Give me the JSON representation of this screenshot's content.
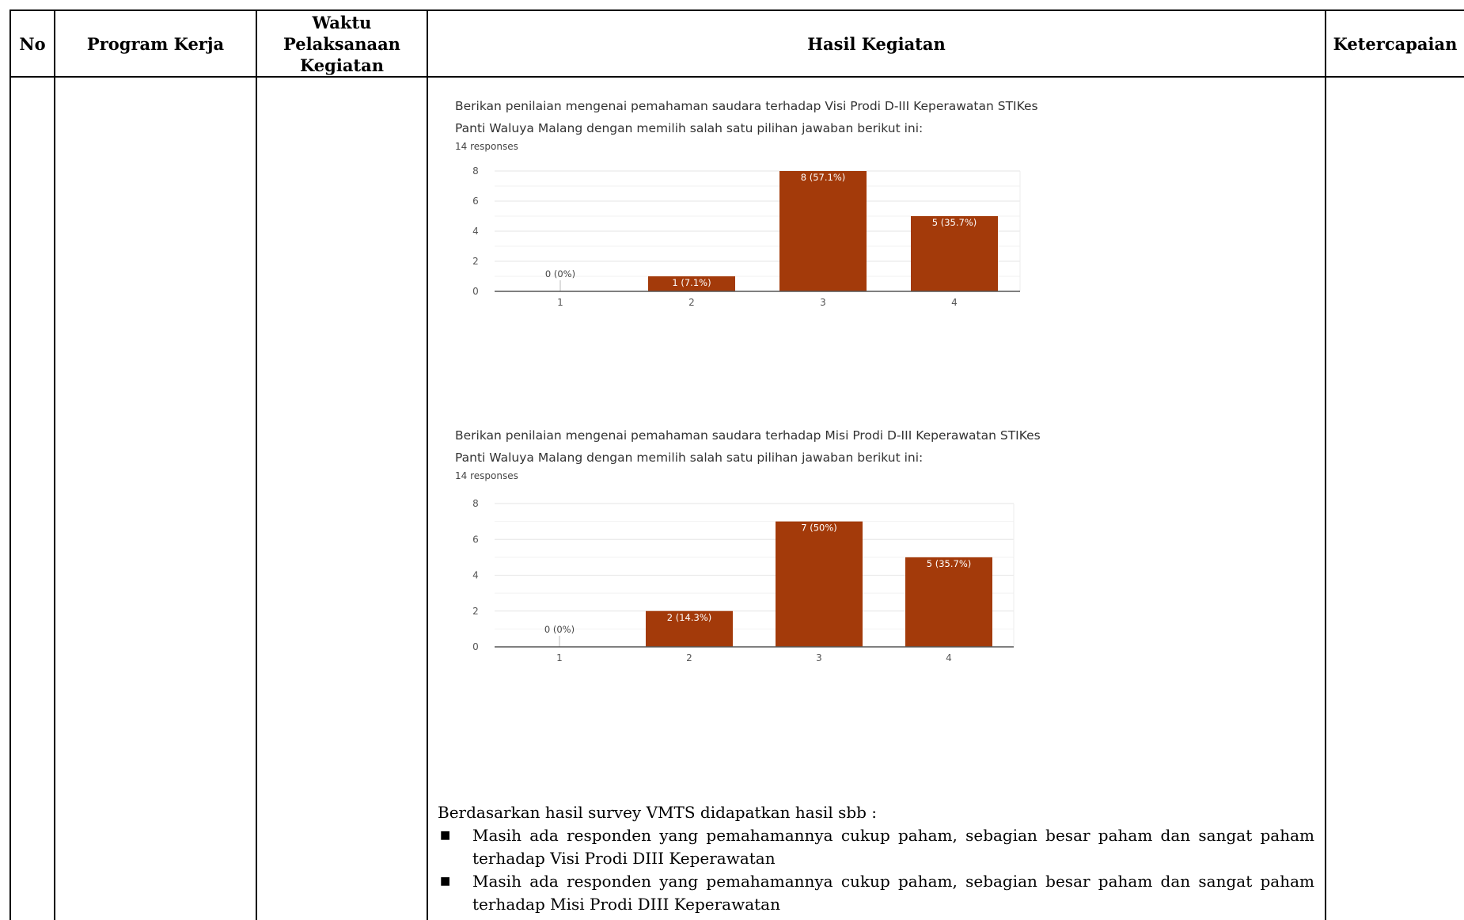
{
  "table": {
    "headers": {
      "no": "No",
      "program_kerja": "Program Kerja",
      "waktu": "Waktu Pelaksanaan Kegiatan",
      "hasil": "Hasil Kegiatan",
      "ketercapaian": "Ketercapaian"
    }
  },
  "charts": {
    "visi": {
      "question_line1": "Berikan penilaian mengenai pemahaman saudara terhadap Visi Prodi D-III Keperawatan STIKes",
      "question_line2": "Panti Waluya Malang dengan memilih salah satu pilihan jawaban berikut ini:",
      "responses": "14 responses"
    },
    "misi": {
      "question_line1": "Berikan penilaian mengenai pemahaman saudara terhadap Misi Prodi D-III Keperawatan STIKes",
      "question_line2": "Panti Waluya Malang dengan memilih salah satu pilihan jawaban berikut ini:",
      "responses": "14 responses"
    }
  },
  "chart_data": [
    {
      "type": "bar",
      "title": "Berikan penilaian mengenai pemahaman saudara terhadap Visi Prodi D-III Keperawatan STIKes Panti Waluya Malang dengan memilih salah satu pilihan jawaban berikut ini:",
      "subtitle": "14 responses",
      "categories": [
        "1",
        "2",
        "3",
        "4"
      ],
      "values": [
        0,
        1,
        8,
        5
      ],
      "data_labels": [
        "0 (0%)",
        "1 (7.1%)",
        "8 (57.1%)",
        "5 (35.7%)"
      ],
      "yticks": [
        "0",
        "2",
        "4",
        "6",
        "8"
      ],
      "ylim": [
        0,
        8
      ],
      "grid": true,
      "color": "#a33a0a"
    },
    {
      "type": "bar",
      "title": "Berikan penilaian mengenai pemahaman saudara terhadap Misi Prodi D-III Keperawatan STIKes Panti Waluya Malang dengan memilih salah satu pilihan jawaban berikut ini:",
      "subtitle": "14 responses",
      "categories": [
        "1",
        "2",
        "3",
        "4"
      ],
      "values": [
        0,
        2,
        7,
        5
      ],
      "data_labels": [
        "0 (0%)",
        "2 (14.3%)",
        "7 (50%)",
        "5 (35.7%)"
      ],
      "yticks": [
        "0",
        "2",
        "4",
        "6",
        "8"
      ],
      "ylim": [
        0,
        8
      ],
      "grid": true,
      "color": "#a33a0a"
    }
  ],
  "summary": {
    "intro": "Berdasarkan hasil survey VMTS didapatkan hasil sbb :",
    "bullet_glyph": "■",
    "items": [
      "Masih ada responden yang pemahamannya cukup paham, sebagian besar paham dan sangat paham terhadap Visi Prodi DIII Keperawatan",
      "Masih ada responden yang pemahamannya cukup paham, sebagian besar paham dan sangat paham terhadap Misi Prodi DIII Keperawatan"
    ]
  }
}
